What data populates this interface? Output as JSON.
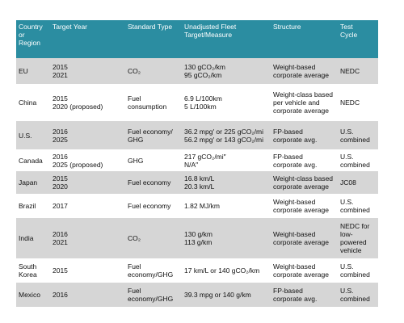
{
  "table": {
    "header": [
      "Country\nor\nRegion",
      "Target Year",
      "Standard Type",
      "Unadjusted Fleet\nTarget/Measure",
      "Structure",
      "Test\nCycle"
    ],
    "rows": [
      [
        "EU",
        "2015\n2021",
        "CO₂",
        "130 gCO₂/km\n95 gCO₂/km",
        "Weight-based\ncorporate average",
        "NEDC"
      ],
      [
        "China",
        "2015\n2020 (proposed)",
        "Fuel\nconsumption",
        "6.9 L/100km\n5 L/100km",
        "Weight-class based\nper vehicle and\ncorporate average",
        "NEDC"
      ],
      [
        "U.S.",
        "2016\n2025",
        "Fuel economy/\nGHG",
        "36.2 mpg′ or 225 gCO₂/mi\n56.2 mpg′ or 143 gCO₂/mi",
        "FP-based\ncorporate avg.",
        "U.S.\ncombined"
      ],
      [
        "Canada",
        "2016\n2025 (proposed)",
        "GHG",
        "217 gCO₂/mi″\nN/A″",
        "FP-based\ncorporate avg.",
        "U.S.\ncombined"
      ],
      [
        "Japan",
        "2015\n2020",
        "Fuel economy",
        "16.8 km/L\n20.3 km/L",
        "Weight-class based\ncorporate average",
        "JC08"
      ],
      [
        "Brazil",
        "2017",
        "Fuel economy",
        "1.82 MJ/km",
        "Weight-based\ncorporate average",
        "U.S.\ncombined"
      ],
      [
        "India",
        "2016\n2021",
        "CO₂",
        "130 g/km\n113 g/km",
        "Weight-based\ncorporate average",
        "NEDC for\nlow-\npowered\nvehicle"
      ],
      [
        "South\nKorea",
        "2015",
        "Fuel\neconomy/GHG",
        "17 km/L or 140 gCO₂/km",
        "Weight-based\ncorporate average",
        "U.S.\ncombined"
      ],
      [
        "Mexico",
        "2016",
        "Fuel\neconomy/GHG",
        "39.3 mpg or 140 g/km",
        "FP-based\ncorporate avg.",
        "U.S.\ncombined"
      ]
    ]
  }
}
